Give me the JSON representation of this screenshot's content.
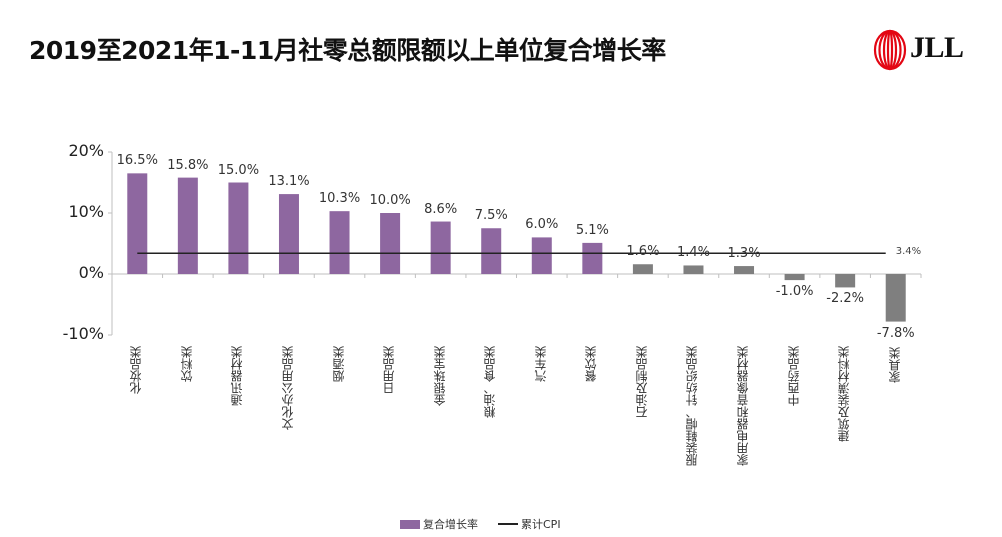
{
  "header": {
    "title": "2019至2021年1-11月社零总额限额以上单位复合增长率",
    "logo_text": "JLL",
    "logo_icon": "jll-helix-icon"
  },
  "colors": {
    "positive_bar": "#8e67a0",
    "negative_or_low_bar": "#7f7f7f",
    "cpi_line": "#222222",
    "logo_red": "#e30613"
  },
  "legend": {
    "series_label": "复合增长率",
    "line_label": "累计CPI"
  },
  "chart_data": {
    "type": "bar",
    "title": "2019至2021年1-11月社零总额限额以上单位复合增长率",
    "xlabel": "",
    "ylabel": "",
    "ylim": [
      -10,
      20
    ],
    "yticks": [
      "20%",
      "10%",
      "0%",
      "-10%"
    ],
    "grid": false,
    "legend_position": "bottom",
    "categories": [
      "化妆品类",
      "饮料类",
      "通讯器材类",
      "文化办公用品类",
      "烟酒类",
      "日用品类",
      "金银珠宝类",
      "粮油、食品类",
      "汽车类",
      "餐饮类",
      "石油及制品类",
      "服装鞋帽、针纺织品类",
      "家用电器和音像器材类",
      "中西药品类",
      "建筑及装潢材料类",
      "家具类"
    ],
    "series": [
      {
        "name": "复合增长率",
        "type": "bar",
        "values": [
          16.5,
          15.8,
          15.0,
          13.1,
          10.3,
          10.0,
          8.6,
          7.5,
          6.0,
          5.1,
          1.6,
          1.4,
          1.3,
          -1.0,
          -2.2,
          -7.8
        ],
        "labels": [
          "16.5%",
          "15.8%",
          "15.0%",
          "13.1%",
          "10.3%",
          "10.0%",
          "8.6%",
          "7.5%",
          "6.0%",
          "5.1%",
          "1.6%",
          "1.4%",
          "1.3%",
          "-1.0%",
          "-2.2%",
          "-7.8%"
        ],
        "colors": [
          "#8e67a0",
          "#8e67a0",
          "#8e67a0",
          "#8e67a0",
          "#8e67a0",
          "#8e67a0",
          "#8e67a0",
          "#8e67a0",
          "#8e67a0",
          "#8e67a0",
          "#7f7f7f",
          "#7f7f7f",
          "#7f7f7f",
          "#7f7f7f",
          "#7f7f7f",
          "#7f7f7f"
        ]
      },
      {
        "name": "累计CPI",
        "type": "line",
        "value": 3.4,
        "label": "3.4%"
      }
    ]
  }
}
